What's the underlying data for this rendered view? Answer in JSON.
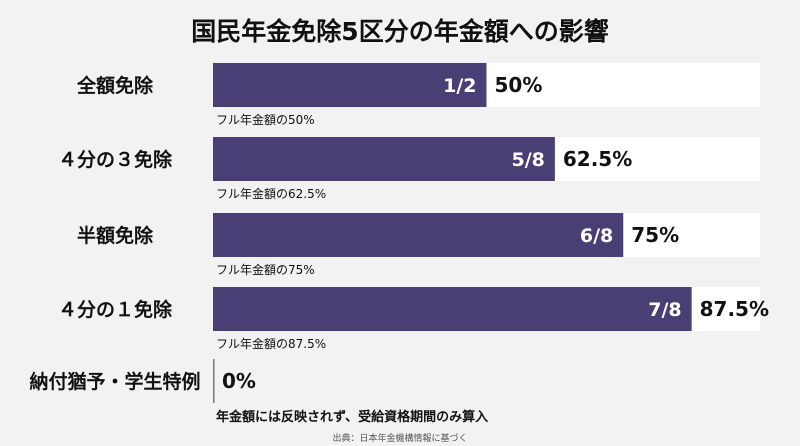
{
  "chart_data": {
    "type": "bar",
    "orientation": "horizontal",
    "title": "国民年金免除5区分の年金額への影響",
    "categories": [
      "全額免除",
      "４分の３免除",
      "半額免除",
      "４分の１免除",
      "納付猶予・学生特例"
    ],
    "values": [
      50,
      62.5,
      75,
      87.5,
      0
    ],
    "inner_labels": [
      "1/2",
      "5/8",
      "6/8",
      "7/8",
      ""
    ],
    "value_labels": [
      "50%",
      "62.5%",
      "75%",
      "87.5%",
      "0%"
    ],
    "notes": [
      "フル年金額の50%",
      "フル年金額の62.5%",
      "フル年金額の75%",
      "フル年金額の87.5%",
      "年金額には反映されず、受給資格期間のみ算入"
    ],
    "xlim": [
      0,
      100
    ],
    "source": "出典：日本年金機構情報に基づく",
    "colors": {
      "bar": "#4a3f74",
      "track": "#ffffff",
      "background": "#f2f2f2"
    },
    "grid": false,
    "legend": "none"
  }
}
